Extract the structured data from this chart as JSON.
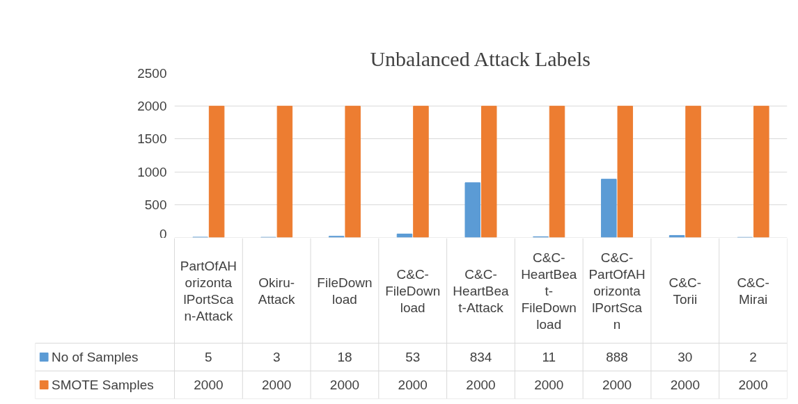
{
  "chart_data": {
    "type": "bar",
    "title": "Unbalanced Attack Labels",
    "categories": [
      "PartOfAHorizontalPortScan-Attack",
      "Okiru-Attack",
      "FileDownload",
      "C&C-FileDownload",
      "C&C-HeartBeat-Attack",
      "C&C-HeartBeat-FileDownload",
      "C&C-PartOfAHorizontalPortScan",
      "C&C-Torii",
      "C&C-Mirai"
    ],
    "series": [
      {
        "name": "No of Samples",
        "color": "#5b9bd5",
        "values": [
          5,
          3,
          18,
          53,
          834,
          11,
          888,
          30,
          2
        ]
      },
      {
        "name": "SMOTE Samples",
        "color": "#ed7d31",
        "values": [
          2000,
          2000,
          2000,
          2000,
          2000,
          2000,
          2000,
          2000,
          2000
        ]
      }
    ],
    "ylim": [
      0,
      2500
    ],
    "yticks": [
      0,
      500,
      1000,
      1500,
      2000,
      2500
    ],
    "grid": "y",
    "legend": "bottom",
    "data_labels": true
  }
}
